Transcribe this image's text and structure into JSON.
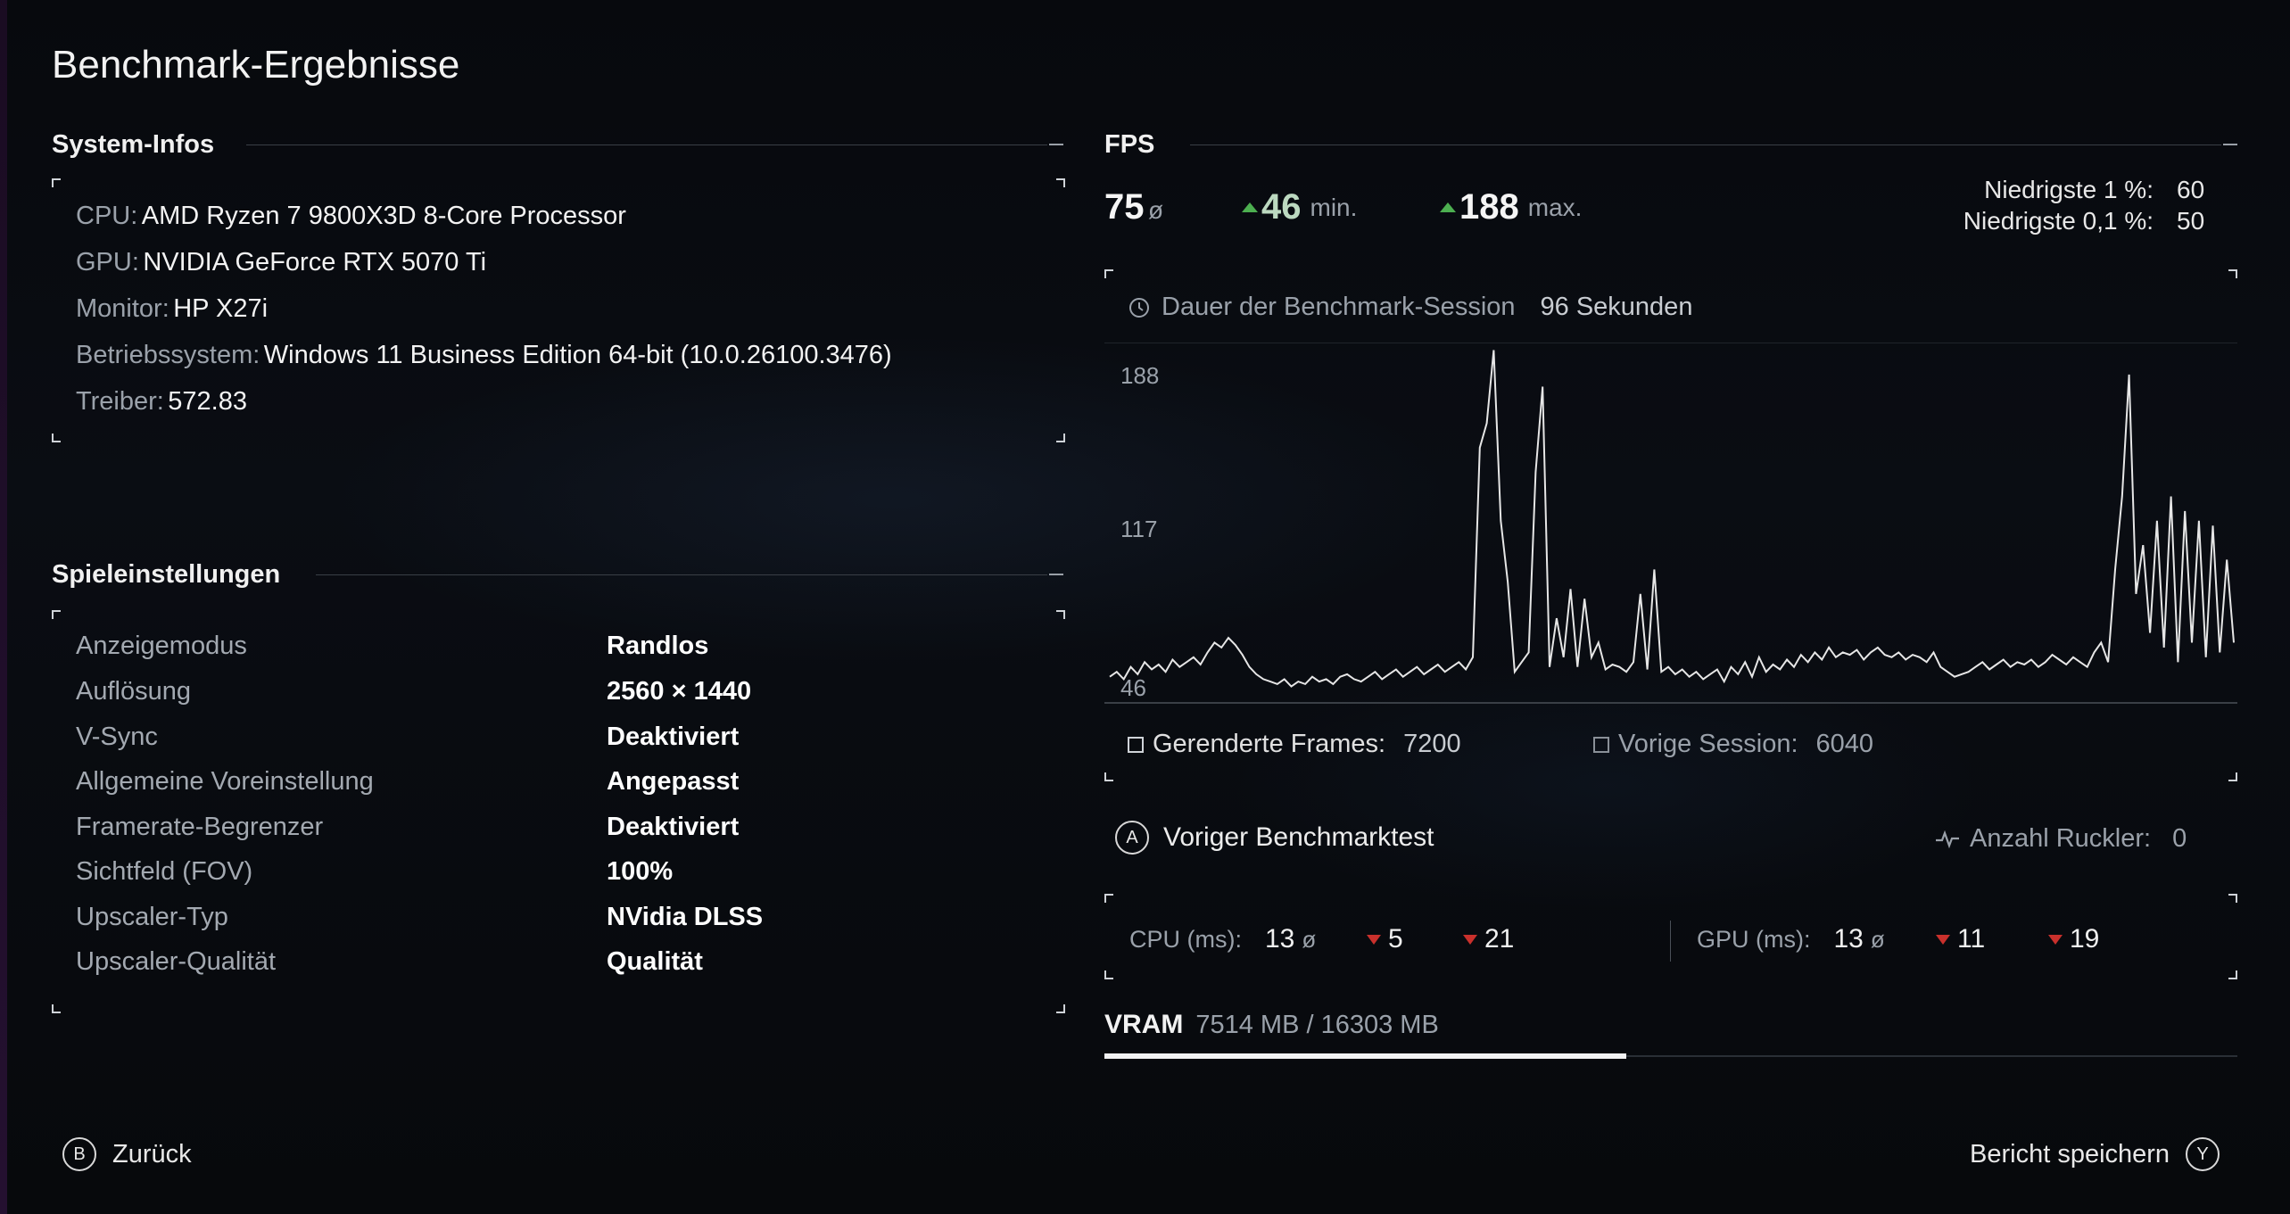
{
  "page": {
    "title": "Benchmark-Ergebnisse"
  },
  "system": {
    "section_title": "System-Infos",
    "rows": [
      {
        "label": "CPU:",
        "value": "AMD Ryzen 7 9800X3D 8-Core Processor"
      },
      {
        "label": "GPU:",
        "value": "NVIDIA GeForce RTX 5070 Ti"
      },
      {
        "label": "Monitor:",
        "value": "HP X27i"
      },
      {
        "label": "Betriebssystem:",
        "value": "Windows 11 Business Edition 64-bit (10.0.26100.3476)"
      },
      {
        "label": "Treiber:",
        "value": "572.83"
      }
    ]
  },
  "settings": {
    "section_title": "Spieleinstellungen",
    "rows": [
      {
        "label": "Anzeigemodus",
        "value": "Randlos"
      },
      {
        "label": "Auflösung",
        "value": "2560 × 1440"
      },
      {
        "label": "V-Sync",
        "value": "Deaktiviert"
      },
      {
        "label": "Allgemeine Voreinstellung",
        "value": "Angepasst"
      },
      {
        "label": "Framerate-Begrenzer",
        "value": "Deaktiviert"
      },
      {
        "label": "Sichtfeld (FOV)",
        "value": "100%"
      },
      {
        "label": "Upscaler-Typ",
        "value": "NVidia DLSS"
      },
      {
        "label": "Upscaler-Qualität",
        "value": "Qualität"
      }
    ]
  },
  "fps": {
    "section_title": "FPS",
    "avg": "75",
    "avg_unit": "ø",
    "min": "46",
    "min_unit": "min.",
    "max": "188",
    "max_unit": "max.",
    "low1_label": "Niedrigste 1 %:",
    "low1_value": "60",
    "low01_label": "Niedrigste 0,1 %:",
    "low01_value": "50",
    "duration_label": "Dauer der Benchmark-Session",
    "duration_value": "96 Sekunden",
    "frames_label": "Gerenderte Frames:",
    "frames_value": "7200",
    "prev_label": "Vorige Session:",
    "prev_value": "6040",
    "colors": {
      "up": "#4caf50",
      "down": "#c9302c",
      "line": "#e6e6e6"
    }
  },
  "chart_data": {
    "type": "line",
    "title": "",
    "xlabel": "",
    "ylabel": "",
    "y_ticks": [
      "188",
      "117",
      "46"
    ],
    "ylim": [
      46,
      188
    ],
    "series": [
      {
        "values": [
          56,
          58,
          55,
          60,
          57,
          62,
          59,
          61,
          58,
          63,
          60,
          62,
          64,
          61,
          66,
          70,
          68,
          72,
          69,
          65,
          60,
          57,
          55,
          54,
          53,
          55,
          52,
          54,
          53,
          56,
          54,
          55,
          53,
          56,
          57,
          55,
          54,
          56,
          58,
          55,
          57,
          59,
          56,
          58,
          60,
          57,
          59,
          61,
          58,
          60,
          62,
          59,
          64,
          150,
          160,
          190,
          120,
          95,
          58,
          62,
          66,
          140,
          175,
          60,
          80,
          64,
          92,
          60,
          88,
          64,
          70,
          59,
          61,
          60,
          58,
          62,
          90,
          59,
          100,
          58,
          60,
          57,
          59,
          56,
          58,
          55,
          57,
          59,
          54,
          60,
          57,
          62,
          56,
          64,
          58,
          61,
          59,
          63,
          60,
          65,
          62,
          66,
          63,
          68,
          64,
          66,
          65,
          67,
          63,
          66,
          68,
          65,
          64,
          66,
          63,
          65,
          64,
          62,
          66,
          60,
          58,
          56,
          57,
          58,
          60,
          62,
          59,
          61,
          63,
          60,
          62,
          61,
          63,
          60,
          62,
          65,
          63,
          61,
          64,
          62,
          60,
          66,
          70,
          62,
          100,
          130,
          180,
          90,
          110,
          74,
          120,
          68,
          130,
          62,
          124,
          70,
          120,
          64,
          118,
          66,
          104,
          70
        ]
      }
    ]
  },
  "previous": {
    "button_letter": "A",
    "label": "Voriger Benchmarktest",
    "stutter_label": "Anzahl Ruckler:",
    "stutter_value": "0"
  },
  "cpu": {
    "label": "CPU (ms):",
    "avg": "13",
    "avg_unit": "ø",
    "min": "5",
    "max": "21"
  },
  "gpu": {
    "label": "GPU (ms):",
    "avg": "13",
    "avg_unit": "ø",
    "min": "11",
    "max": "19"
  },
  "vram": {
    "label": "VRAM",
    "value": "7514 MB / 16303 MB",
    "used_mb": 7514,
    "total_mb": 16303
  },
  "footer": {
    "back_letter": "B",
    "back_label": "Zurück",
    "save_label": "Bericht speichern",
    "save_letter": "Y"
  }
}
